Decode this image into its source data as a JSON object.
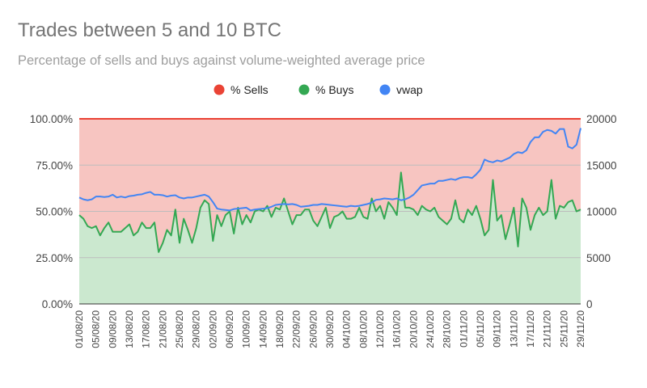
{
  "chart_data": {
    "type": "area",
    "title": "Trades between 5 and 10 BTC",
    "subtitle": "Percentage of sells and buys against volume-weighted average price",
    "legend": [
      {
        "name": "% Sells",
        "color": "#ea4335"
      },
      {
        "name": "% Buys",
        "color": "#34a853"
      },
      {
        "name": "vwap",
        "color": "#4285f4"
      }
    ],
    "legend_position": "top",
    "colors": {
      "sells_fill": "#f7c5c1",
      "buys_fill": "#cbe8cf",
      "sells_line": "#ea4335",
      "buys_line": "#34a853",
      "vwap_line": "#4285f4"
    },
    "y_left": {
      "ticks": [
        "0.00%",
        "25.00%",
        "50.00%",
        "75.00%",
        "100.00%"
      ],
      "range": [
        0,
        100
      ]
    },
    "y_right": {
      "ticks": [
        "0",
        "5000",
        "10000",
        "15000",
        "20000"
      ],
      "range": [
        0,
        20000
      ]
    },
    "x_ticks": [
      "01/08/20",
      "05/08/20",
      "09/08/20",
      "13/08/20",
      "17/08/20",
      "21/08/20",
      "25/08/20",
      "29/08/20",
      "02/09/20",
      "06/09/20",
      "10/09/20",
      "14/09/20",
      "18/09/20",
      "22/09/20",
      "26/09/20",
      "30/09/20",
      "04/10/20",
      "08/10/20",
      "12/10/20",
      "16/10/20",
      "20/10/20",
      "24/10/20",
      "28/10/20",
      "01/11/20",
      "05/11/20",
      "09/11/20",
      "13/11/20",
      "17/11/20",
      "21/11/20",
      "25/11/20",
      "29/11/20"
    ],
    "x_start": "01/08/20",
    "x_days": 121,
    "series": [
      {
        "name": "% Buys",
        "axis": "left",
        "values": [
          48,
          46,
          42,
          41,
          42,
          37,
          41,
          44,
          39,
          39,
          39,
          41,
          43,
          37,
          39,
          44,
          41,
          41,
          44,
          28,
          33,
          40,
          37,
          51,
          33,
          46,
          40,
          33,
          41,
          52,
          56,
          54,
          34,
          48,
          42,
          48,
          50,
          38,
          52,
          43,
          48,
          44,
          50,
          51,
          50,
          53,
          47,
          52,
          51,
          57,
          50,
          43,
          48,
          48,
          51,
          51,
          45,
          42,
          47,
          52,
          41,
          47,
          48,
          50,
          46,
          46,
          47,
          52,
          47,
          46,
          57,
          50,
          53,
          46,
          55,
          52,
          48,
          71,
          52,
          52,
          51,
          48,
          53,
          51,
          50,
          52,
          47,
          45,
          43,
          46,
          56,
          46,
          44,
          51,
          48,
          53,
          46,
          37,
          40,
          67,
          45,
          48,
          35,
          43,
          52,
          31,
          57,
          52,
          40,
          48,
          52,
          48,
          50,
          67,
          46,
          53,
          52,
          55,
          56,
          50,
          51
        ]
      },
      {
        "name": "vwap",
        "axis": "right",
        "values": [
          11500,
          11300,
          11200,
          11300,
          11600,
          11600,
          11550,
          11600,
          11800,
          11500,
          11600,
          11500,
          11650,
          11700,
          11800,
          11850,
          12000,
          12100,
          11800,
          11800,
          11750,
          11600,
          11700,
          11750,
          11500,
          11400,
          11500,
          11500,
          11600,
          11700,
          11800,
          11600,
          11000,
          10300,
          10200,
          10150,
          10100,
          10250,
          10300,
          10350,
          10400,
          10100,
          10200,
          10250,
          10300,
          10350,
          10500,
          10700,
          10750,
          10800,
          10750,
          10800,
          10700,
          10500,
          10550,
          10600,
          10700,
          10700,
          10800,
          10750,
          10700,
          10650,
          10600,
          10550,
          10500,
          10600,
          10550,
          10600,
          10700,
          10800,
          10950,
          11250,
          11300,
          11400,
          11350,
          11300,
          11400,
          11200,
          11300,
          11500,
          11800,
          12300,
          12800,
          12900,
          13000,
          13000,
          13300,
          13300,
          13400,
          13500,
          13400,
          13600,
          13700,
          13700,
          13600,
          14000,
          14500,
          15600,
          15400,
          15300,
          15500,
          15400,
          15600,
          15800,
          16200,
          16400,
          16300,
          16600,
          17500,
          18000,
          18000,
          18600,
          18800,
          18700,
          18400,
          18900,
          18900,
          17000,
          16800,
          17200,
          19000
        ]
      }
    ]
  }
}
